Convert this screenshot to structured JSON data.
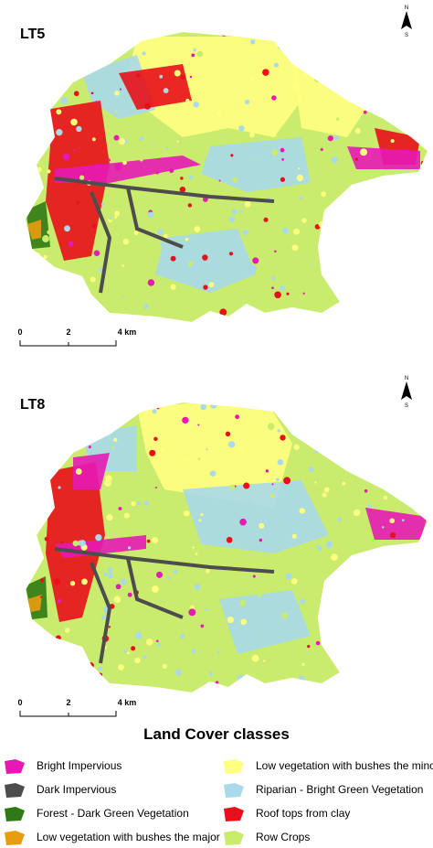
{
  "maps": [
    {
      "label": "LT5",
      "scale": [
        "0",
        "2",
        "4 km"
      ],
      "north": {
        "top": "N",
        "bottom": "S"
      }
    },
    {
      "label": "LT8",
      "scale": [
        "0",
        "2",
        "4 km"
      ],
      "north": {
        "top": "N",
        "bottom": "S"
      }
    }
  ],
  "legend": {
    "title": "Land Cover classes",
    "items": [
      {
        "label": "Bright Impervious",
        "color": "#e619b5"
      },
      {
        "label": "Dark Impervious",
        "color": "#4d4d4d"
      },
      {
        "label": "Forest - Dark Green Vegetation",
        "color": "#2f7a14"
      },
      {
        "label": "Low vegetation with bushes the major",
        "color": "#e89c10"
      },
      {
        "label": "Low vegetation with bushes the minor",
        "color": "#ffff80"
      },
      {
        "label": "Riparian - Bright Green Vegetation",
        "color": "#a9d9ea"
      },
      {
        "label": "Roof tops from clay",
        "color": "#e8101a"
      },
      {
        "label": "Row Crops",
        "color": "#c9ec6e"
      }
    ]
  }
}
